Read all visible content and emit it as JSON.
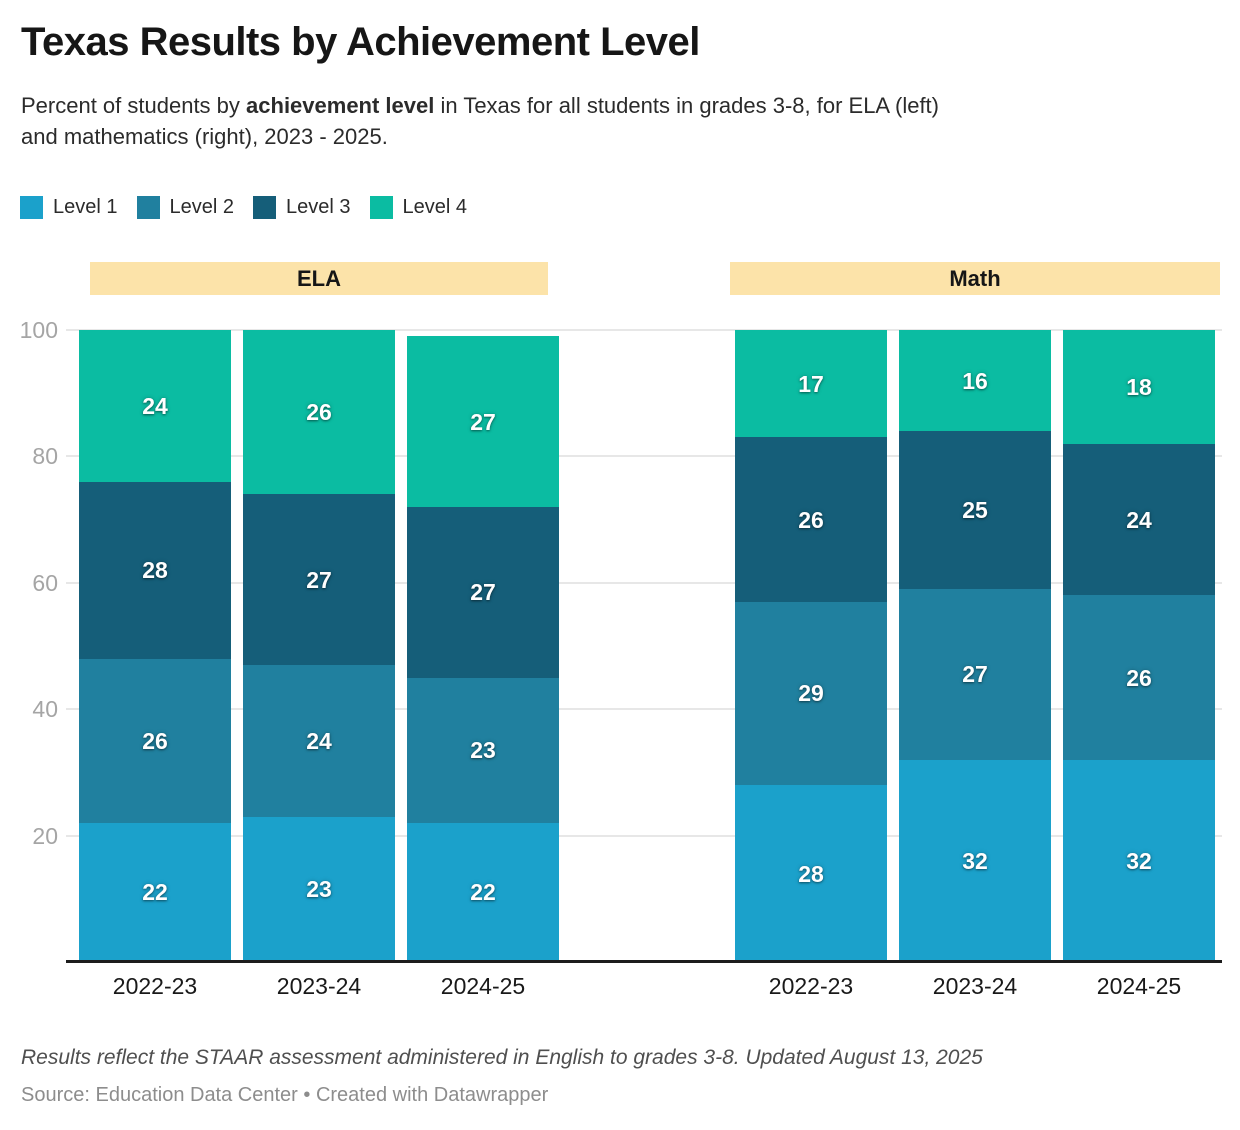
{
  "header": {
    "title": "Texas Results by Achievement Level",
    "subtitle_prefix": "Percent of students by ",
    "subtitle_bold": "achievement level",
    "subtitle_mid": " in Texas for all students in grades 3-8, for ELA (left)",
    "subtitle_line2": "and mathematics (right), 2023 - 2025."
  },
  "legend": {
    "items": [
      {
        "label": "Level 1",
        "color": "#1ba1cb"
      },
      {
        "label": "Level 2",
        "color": "#20809f"
      },
      {
        "label": "Level 3",
        "color": "#155e79"
      },
      {
        "label": "Level 4",
        "color": "#0bbca2"
      }
    ]
  },
  "chart_data": {
    "type": "bar",
    "stacked": true,
    "value_unit": "percent",
    "ylim": [
      0,
      100
    ],
    "yticks": [
      20,
      40,
      60,
      80,
      100
    ],
    "grid": "horizontal",
    "legend_position": "top-left",
    "categories": [
      "2022-23",
      "2023-24",
      "2024-25"
    ],
    "group_header_bg": "#fce3a9",
    "groups": [
      {
        "label": "ELA",
        "series": [
          {
            "name": "Level 1",
            "color": "#1ba1cb",
            "values": [
              22,
              23,
              22
            ]
          },
          {
            "name": "Level 2",
            "color": "#20809f",
            "values": [
              26,
              24,
              23
            ]
          },
          {
            "name": "Level 3",
            "color": "#155e79",
            "values": [
              28,
              27,
              27
            ]
          },
          {
            "name": "Level 4",
            "color": "#0bbca2",
            "values": [
              24,
              26,
              27
            ]
          }
        ]
      },
      {
        "label": "Math",
        "series": [
          {
            "name": "Level 1",
            "color": "#1ba1cb",
            "values": [
              28,
              32,
              32
            ]
          },
          {
            "name": "Level 2",
            "color": "#20809f",
            "values": [
              29,
              27,
              26
            ]
          },
          {
            "name": "Level 3",
            "color": "#155e79",
            "values": [
              26,
              25,
              24
            ]
          },
          {
            "name": "Level 4",
            "color": "#0bbca2",
            "values": [
              17,
              16,
              18
            ]
          }
        ]
      }
    ]
  },
  "footer": {
    "notes": "Results reflect the STAAR assessment administered in English to grades 3-8. Updated August 13, 2025",
    "source": "Source: Education Data Center • Created with Datawrapper"
  }
}
